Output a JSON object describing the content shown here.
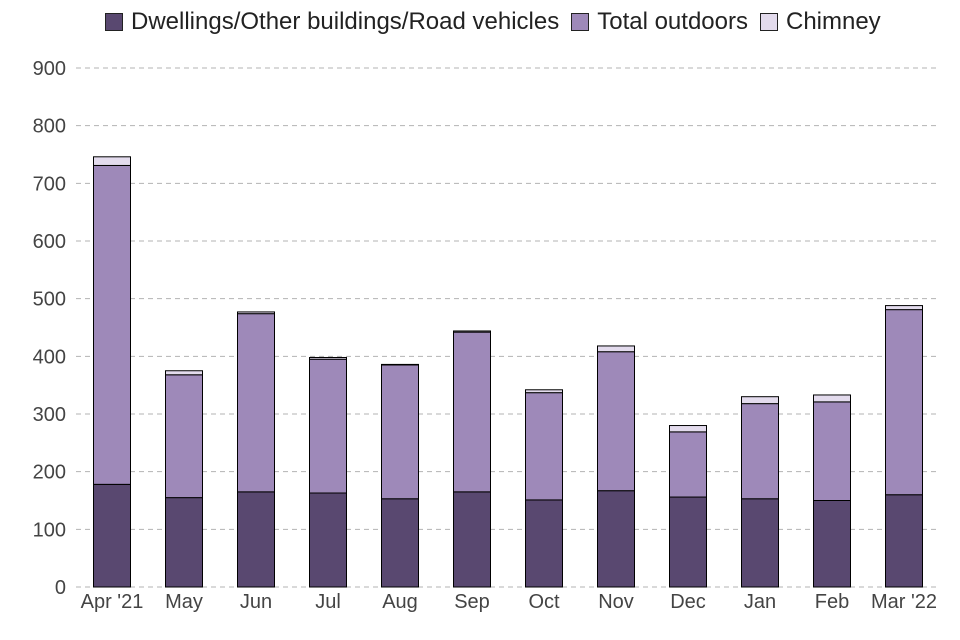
{
  "chart_data": {
    "type": "bar",
    "stacked": true,
    "title": "",
    "xlabel": "",
    "ylabel": "",
    "categories": [
      "Apr '21",
      "May",
      "Jun",
      "Jul",
      "Aug",
      "Sep",
      "Oct",
      "Nov",
      "Dec",
      "Jan",
      "Feb",
      "Mar '22"
    ],
    "series": [
      {
        "name": "Dwellings/Other buildings/Road vehicles",
        "color": "#594870",
        "values": [
          178,
          155,
          165,
          163,
          153,
          165,
          151,
          167,
          156,
          153,
          150,
          160
        ]
      },
      {
        "name": "Total outdoors",
        "color": "#9e89b9",
        "values": [
          553,
          213,
          309,
          232,
          232,
          277,
          186,
          241,
          113,
          165,
          171,
          321
        ]
      },
      {
        "name": "Chimney",
        "color": "#e3dbed",
        "values": [
          15,
          7,
          3,
          3,
          1,
          2,
          5,
          10,
          11,
          12,
          12,
          7
        ]
      }
    ],
    "ylim": [
      0,
      900
    ],
    "yticks": [
      0,
      100,
      200,
      300,
      400,
      500,
      600,
      700,
      800,
      900
    ],
    "grid": true,
    "legend_position": "top"
  }
}
